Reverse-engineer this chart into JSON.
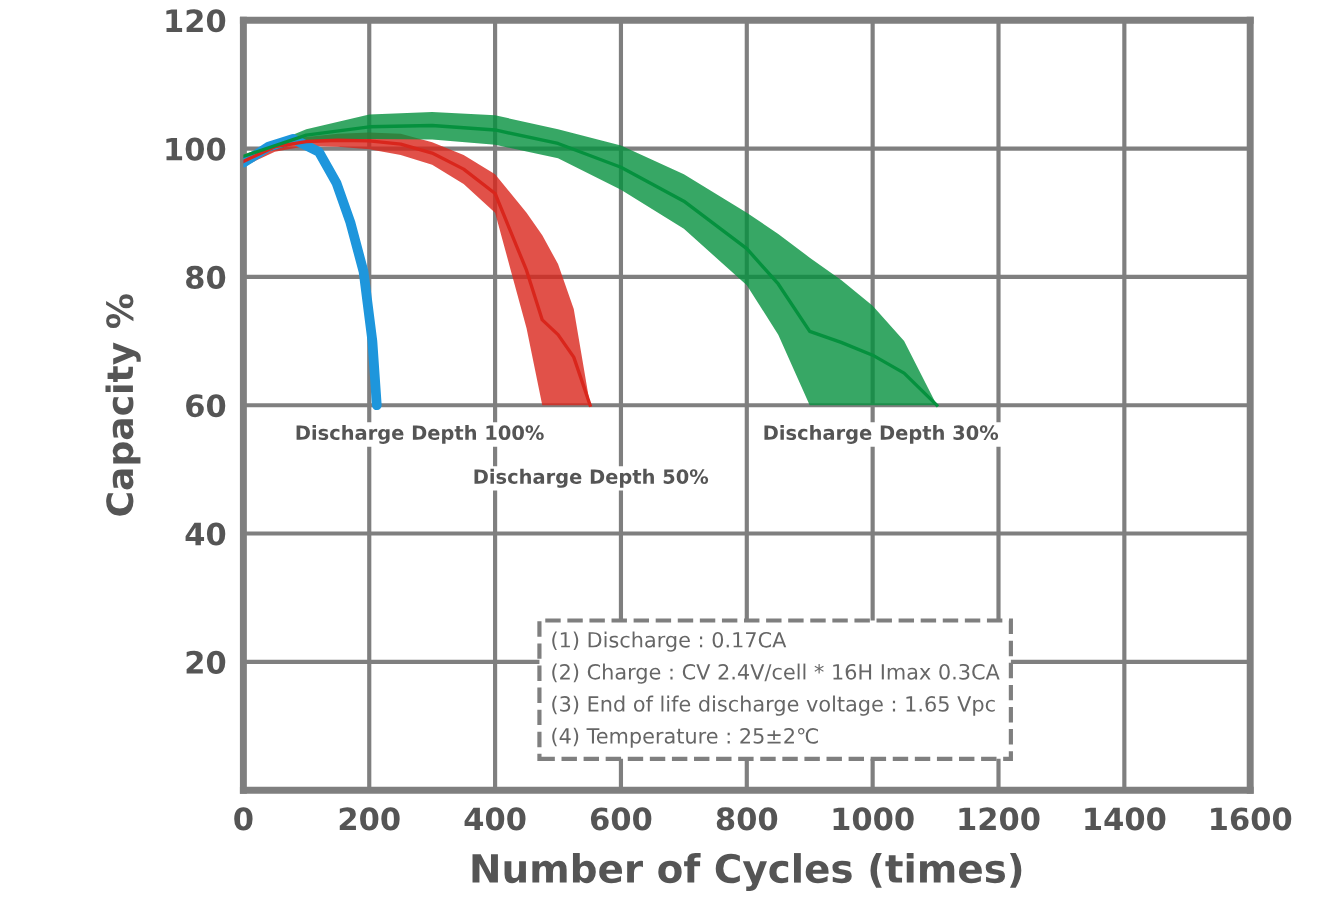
{
  "chart_data": {
    "type": "line",
    "xlabel": "Number of Cycles (times)",
    "ylabel": "Capacity %",
    "xlim": [
      0,
      1600
    ],
    "xticks": [
      0,
      200,
      400,
      600,
      800,
      1000,
      1200,
      1400,
      1600
    ],
    "ylim": [
      0,
      120
    ],
    "yticks": [
      20,
      40,
      60,
      80,
      100,
      120
    ],
    "grid": true,
    "series": [
      {
        "color": "#1e96dc",
        "x": [
          0,
          40,
          79,
          120,
          148,
          170,
          191,
          205,
          212
        ],
        "values": [
          97.8,
          100.3,
          101.5,
          99.5,
          94.6,
          88.5,
          80.8,
          70,
          60
        ]
      },
      {
        "color": "#d9261c",
        "x": [
          0,
          50,
          100,
          150,
          200,
          250,
          300,
          350,
          400,
          450,
          475,
          500,
          525,
          551
        ],
        "values": [
          98,
          100.3,
          101.1,
          101.3,
          101.2,
          100.7,
          99.3,
          96.8,
          93,
          81,
          73.3,
          71,
          67.5,
          60
        ],
        "lower": [
          97.2,
          99.5,
          100.4,
          100.3,
          99.9,
          99,
          97.5,
          94.5,
          90,
          72,
          60,
          60,
          60,
          60
        ],
        "upper": [
          98.8,
          101,
          101.8,
          102.3,
          102.5,
          102.3,
          101,
          99,
          96,
          90,
          86.5,
          82,
          75,
          60
        ]
      },
      {
        "color": "#05913e",
        "x": [
          0,
          100,
          200,
          300,
          400,
          500,
          600,
          700,
          800,
          850,
          900,
          950,
          1000,
          1050,
          1102
        ],
        "values": [
          98.8,
          102.1,
          103.4,
          103.6,
          102.9,
          100.8,
          97.1,
          91.8,
          84.4,
          78.9,
          71.5,
          69.8,
          67.8,
          65,
          60
        ],
        "lower": [
          98.5,
          101.2,
          101.5,
          101.4,
          100.6,
          98.5,
          93.6,
          87.5,
          78.7,
          71,
          60,
          60,
          60,
          60,
          60
        ],
        "upper": [
          99,
          103,
          105.3,
          105.7,
          105.2,
          103,
          100.5,
          96,
          90,
          86.7,
          83,
          79.5,
          75.5,
          70,
          60
        ]
      }
    ],
    "annotations": [
      "Discharge Depth 100%",
      "Discharge Depth 50%",
      "Discharge Depth 30%",
      "(1) Discharge : 0.17CA",
      "(2) Charge : CV 2.4V/cell * 16H Imax 0.3CA",
      "(3) End of life discharge voltage : 1.65 Vpc",
      "(4) Temperature : 25±2℃"
    ]
  }
}
